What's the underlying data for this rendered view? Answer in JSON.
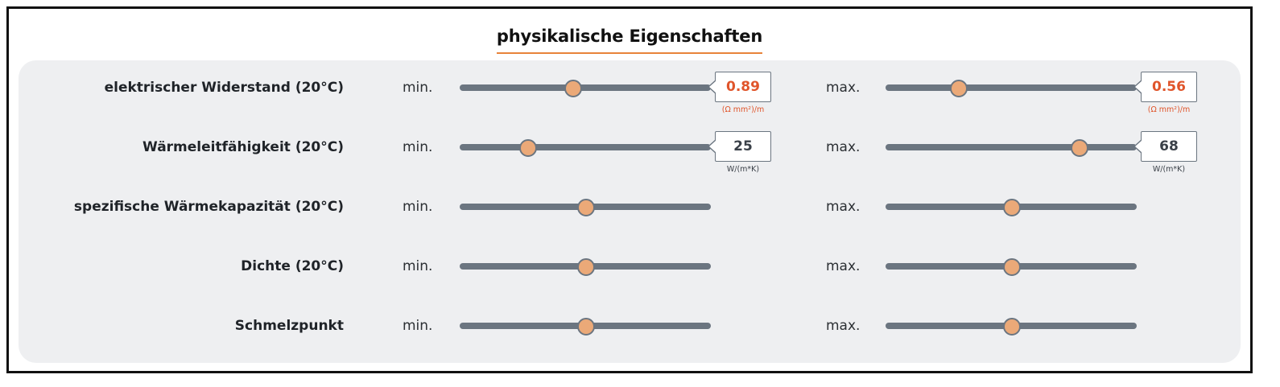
{
  "title": "physikalische Eigenschaften",
  "colors": {
    "accent": "#e8833a",
    "track": "#6b7580",
    "thumb": "#eba978",
    "highlight_value": "#e0552b",
    "panel_background": "#eeeff1"
  },
  "rows": [
    {
      "label": "elektrischer Widerstand (20°C)",
      "min": {
        "label": "min.",
        "slider_level": 0.45,
        "value": "0.89",
        "unit": "(Ω mm²)/m",
        "highlight": true
      },
      "max": {
        "label": "max.",
        "slider_level": 0.29,
        "value": "0.56",
        "unit": "(Ω mm²)/m",
        "highlight": true
      }
    },
    {
      "label": "Wärmeleitfähigkeit (20°C)",
      "min": {
        "label": "min.",
        "slider_level": 0.27,
        "value": "25",
        "unit": "W/(m*K)",
        "highlight": false
      },
      "max": {
        "label": "max.",
        "slider_level": 0.77,
        "value": "68",
        "unit": "W/(m*K)",
        "highlight": false
      }
    },
    {
      "label": "spezifische Wärmekapazität (20°C)",
      "min": {
        "label": "min.",
        "slider_level": 0.5
      },
      "max": {
        "label": "max.",
        "slider_level": 0.5
      }
    },
    {
      "label": "Dichte (20°C)",
      "min": {
        "label": "min.",
        "slider_level": 0.5
      },
      "max": {
        "label": "max.",
        "slider_level": 0.5
      }
    },
    {
      "label": "Schmelzpunkt",
      "min": {
        "label": "min.",
        "slider_level": 0.5
      },
      "max": {
        "label": "max.",
        "slider_level": 0.5
      }
    }
  ]
}
